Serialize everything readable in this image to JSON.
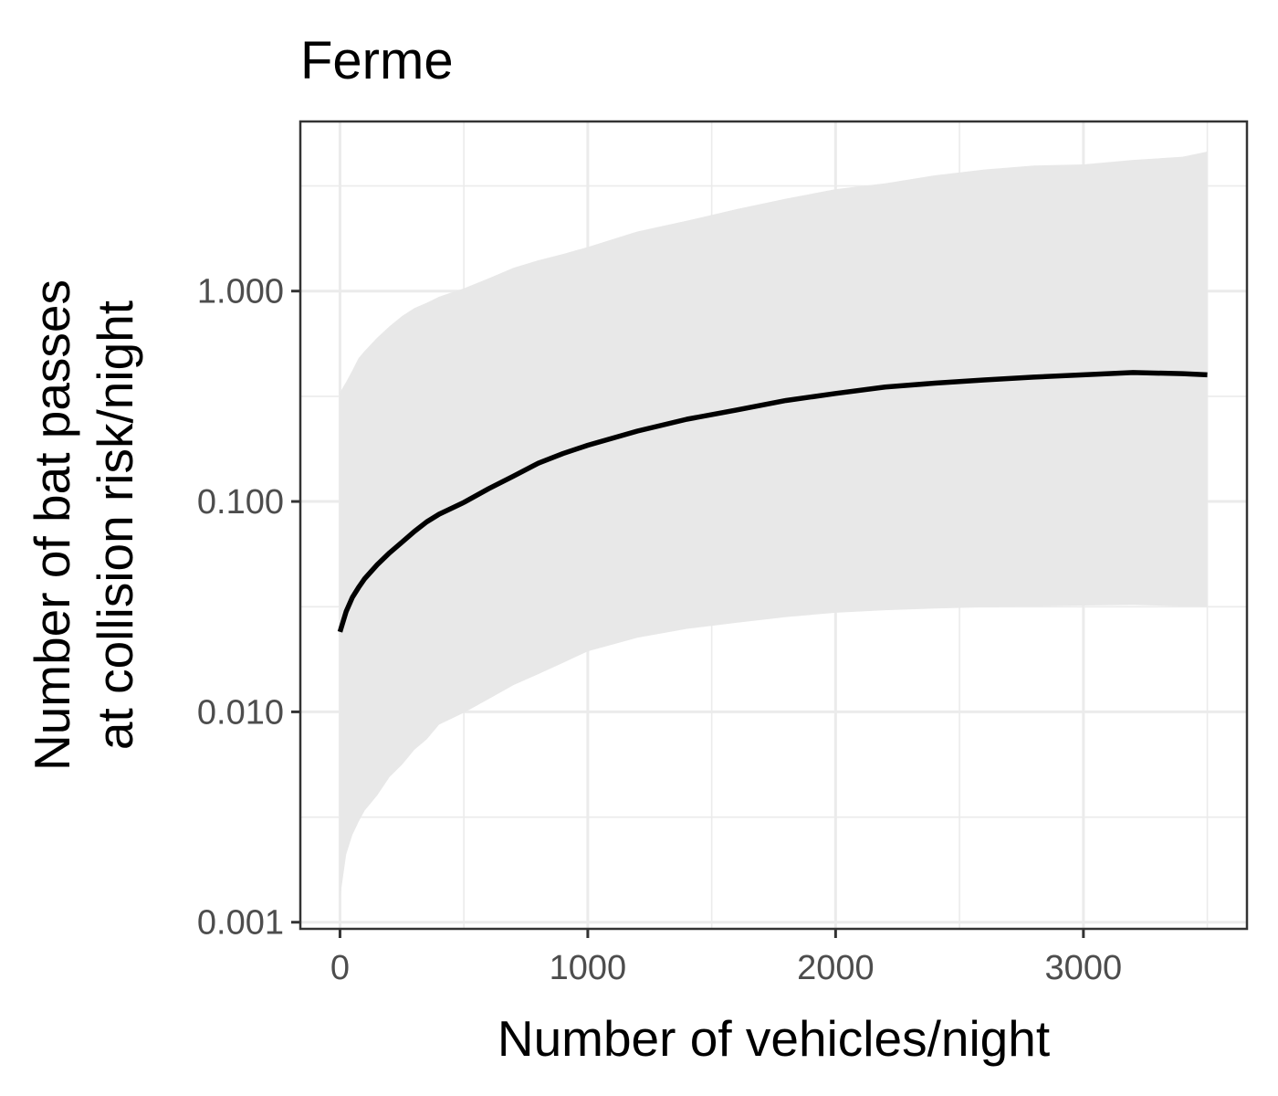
{
  "chart_data": {
    "type": "line",
    "title": "Ferme",
    "xlabel": "Number of vehicles/night",
    "ylabel_lines": [
      "Number of bat passes",
      "at collision risk/night"
    ],
    "xlim": [
      -160,
      3660
    ],
    "ylim": [
      0.00093,
      6.4
    ],
    "y_scale": "log10",
    "grid": true,
    "x_ticks": [
      0,
      1000,
      2000,
      3000
    ],
    "x_tick_labels": [
      "0",
      "1000",
      "2000",
      "3000"
    ],
    "x_minor_ticks": [
      500,
      1500,
      2500,
      3500
    ],
    "y_ticks": [
      0.001,
      0.01,
      0.1,
      1
    ],
    "y_tick_labels": [
      "0.001",
      "0.010",
      "0.100",
      "1.000"
    ],
    "y_minor_ticks": [
      0.00316,
      0.0316,
      0.316,
      3.16
    ],
    "line_color": "#000000",
    "ribbon_color": "#e8e8e8",
    "series": [
      {
        "role": "estimate",
        "x": [
          0,
          25,
          50,
          75,
          100,
          150,
          200,
          250,
          300,
          350,
          400,
          500,
          600,
          700,
          800,
          900,
          1000,
          1200,
          1400,
          1600,
          1800,
          2000,
          2200,
          2400,
          2600,
          2800,
          3000,
          3200,
          3400,
          3500
        ],
        "y": [
          0.024,
          0.03,
          0.035,
          0.039,
          0.043,
          0.05,
          0.057,
          0.064,
          0.072,
          0.08,
          0.087,
          0.099,
          0.115,
          0.132,
          0.152,
          0.169,
          0.185,
          0.216,
          0.246,
          0.272,
          0.302,
          0.326,
          0.35,
          0.365,
          0.378,
          0.39,
          0.4,
          0.41,
          0.405,
          0.4
        ]
      },
      {
        "role": "ribbon",
        "x": [
          0,
          25,
          50,
          75,
          100,
          150,
          200,
          250,
          300,
          350,
          400,
          500,
          600,
          700,
          800,
          900,
          1000,
          1200,
          1400,
          1600,
          1800,
          2000,
          2200,
          2400,
          2600,
          2800,
          3000,
          3200,
          3400,
          3500
        ],
        "ymin": [
          0.0013,
          0.0021,
          0.0026,
          0.003,
          0.0034,
          0.004,
          0.0049,
          0.0056,
          0.0066,
          0.0074,
          0.0087,
          0.0099,
          0.0115,
          0.0134,
          0.0151,
          0.0171,
          0.0194,
          0.0225,
          0.0248,
          0.0265,
          0.0282,
          0.0296,
          0.0304,
          0.031,
          0.0314,
          0.0318,
          0.032,
          0.0322,
          0.0318,
          0.0316
        ],
        "ymax": [
          0.33,
          0.37,
          0.42,
          0.48,
          0.52,
          0.6,
          0.68,
          0.76,
          0.83,
          0.88,
          0.94,
          1.03,
          1.15,
          1.29,
          1.4,
          1.5,
          1.62,
          1.92,
          2.16,
          2.45,
          2.75,
          3.05,
          3.25,
          3.55,
          3.78,
          3.95,
          4.0,
          4.2,
          4.35,
          4.6
        ]
      }
    ]
  }
}
